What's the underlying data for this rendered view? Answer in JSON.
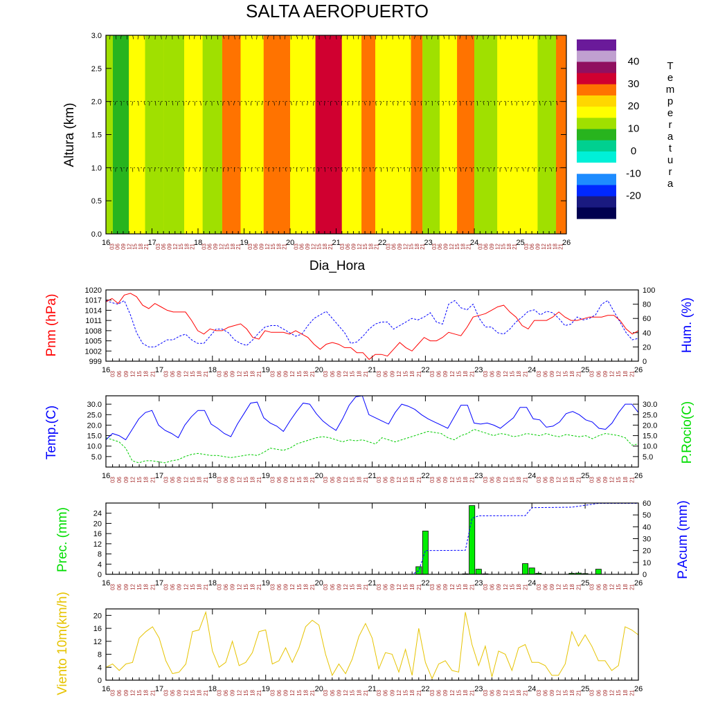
{
  "page": {
    "title": "SALTA AEROPUERTO",
    "xlabel": "Dia_Hora"
  },
  "days": [
    "16",
    "17",
    "18",
    "19",
    "20",
    "21",
    "22",
    "23",
    "24",
    "25",
    "26"
  ],
  "hours": [
    "03",
    "06",
    "09",
    "12",
    "15",
    "18",
    "21"
  ],
  "chart_data": [
    {
      "type": "heatmap",
      "name": "temperature-cross-section",
      "ylabel": "Altura (km)",
      "ylim": [
        0,
        3
      ],
      "yticks": [
        "0.0",
        "0.5",
        "1.0",
        "1.5",
        "2.0",
        "2.5",
        "3.0"
      ],
      "wind_levels_km": [
        1.0,
        2.0,
        3.0
      ],
      "colorbar": {
        "title": "Temperatura",
        "labels": [
          "40",
          "30",
          "20",
          "10",
          "0",
          "-10",
          "-20"
        ],
        "colors": [
          "#000050",
          "#1a1a80",
          "#0028ff",
          "#1e8cff",
          "#ffffff",
          "#00f0d8",
          "#00d090",
          "#28b41e",
          "#a0e000",
          "#ffff00",
          "#ffd700",
          "#ff7300",
          "#d00030",
          "#901060",
          "#c0a0d0",
          "#6a1a9a"
        ]
      },
      "columns": [
        {
          "day": 16.0,
          "value": 16
        },
        {
          "day": 16.3,
          "value": 12
        },
        {
          "day": 16.7,
          "value": 22
        },
        {
          "day": 17.0,
          "value": 18
        },
        {
          "day": 17.5,
          "value": 18
        },
        {
          "day": 17.9,
          "value": 22
        },
        {
          "day": 18.3,
          "value": 18
        },
        {
          "day": 18.75,
          "value": 27
        },
        {
          "day": 19.1,
          "value": 22
        },
        {
          "day": 19.75,
          "value": 27
        },
        {
          "day": 20.25,
          "value": 22
        },
        {
          "day": 20.85,
          "value": 32
        },
        {
          "day": 21.4,
          "value": 22
        },
        {
          "day": 21.7,
          "value": 27
        },
        {
          "day": 22.0,
          "value": 22
        },
        {
          "day": 22.5,
          "value": 22
        },
        {
          "day": 22.75,
          "value": 27
        },
        {
          "day": 23.0,
          "value": 18
        },
        {
          "day": 23.5,
          "value": 20
        },
        {
          "day": 23.75,
          "value": 27
        },
        {
          "day": 24.25,
          "value": 18
        },
        {
          "day": 24.75,
          "value": 22
        },
        {
          "day": 25.2,
          "value": 22
        },
        {
          "day": 25.55,
          "value": 18
        },
        {
          "day": 26.0,
          "value": 27
        }
      ]
    },
    {
      "type": "line",
      "name": "pressure-humidity",
      "ylabel_left": "Pnm (hPa)",
      "ylabel_right": "Hum. (%)",
      "yticks_left": [
        "999",
        "1002",
        "1005",
        "1008",
        "1011",
        "1014",
        "1017",
        "1020"
      ],
      "yticks_right": [
        "0",
        "20",
        "40",
        "60",
        "80",
        "100"
      ],
      "ylim_left": [
        999,
        1020
      ],
      "ylim_right": [
        0,
        100
      ],
      "series": [
        {
          "name": "Pnm (hPa)",
          "axis": "left",
          "color": "#ff0000",
          "dash": "",
          "values": [
            1016.5,
            1017.5,
            1016,
            1018.5,
            1019,
            1018,
            1015.5,
            1014.5,
            1016,
            1015,
            1014,
            1013.5,
            1013.5,
            1013.5,
            1011,
            1008,
            1007,
            1008.5,
            1008,
            1008,
            1009,
            1009.5,
            1010,
            1008.5,
            1006,
            1005.5,
            1008,
            1007.5,
            1007.5,
            1007.5,
            1007,
            1008,
            1007,
            1006,
            1004,
            1002.5,
            1004,
            1004.5,
            1004,
            1003,
            1003,
            1001.5,
            1001.5,
            999.5,
            1001,
            1001,
            1000.5,
            1002.5,
            1004.5,
            1003,
            1002,
            1004,
            1006,
            1005,
            1005,
            1006,
            1007.5,
            1007,
            1006.5,
            1009,
            1012,
            1012.5,
            1013,
            1014,
            1015,
            1015.5,
            1013.5,
            1012,
            1009.5,
            1008.5,
            1011,
            1011,
            1011,
            1012,
            1013.5,
            1012,
            1011,
            1011,
            1011.5,
            1012,
            1012,
            1012,
            1012.5,
            1012.5,
            1011,
            1008.5,
            1007,
            1008
          ]
        },
        {
          "name": "Hum. (%)",
          "axis": "right",
          "color": "#0000ff",
          "dash": "3,2",
          "values": [
            85,
            82,
            80,
            85,
            65,
            40,
            25,
            20,
            20,
            25,
            30,
            30,
            35,
            38,
            30,
            25,
            25,
            35,
            45,
            45,
            40,
            30,
            25,
            22,
            30,
            40,
            48,
            50,
            50,
            45,
            40,
            35,
            38,
            50,
            60,
            65,
            70,
            60,
            50,
            40,
            25,
            27,
            35,
            45,
            52,
            55,
            55,
            45,
            50,
            55,
            60,
            58,
            62,
            68,
            55,
            52,
            80,
            85,
            75,
            72,
            80,
            60,
            48,
            48,
            40,
            38,
            45,
            55,
            62,
            70,
            72,
            65,
            70,
            68,
            60,
            50,
            52,
            62,
            58,
            60,
            65,
            80,
            85,
            70,
            55,
            40,
            30,
            32
          ]
        }
      ]
    },
    {
      "type": "line",
      "name": "temperature-dewpoint",
      "ylabel_left": "Temp.(C)",
      "ylabel_right": "P.Rocio(C)",
      "yticks_left": [
        "5.0",
        "10.0",
        "15.0",
        "20.0",
        "25.0",
        "30.0"
      ],
      "yticks_right": [
        "5.0",
        "10.0",
        "15.0",
        "20.0",
        "25.0",
        "30.0"
      ],
      "ylim": [
        0,
        34
      ],
      "series": [
        {
          "name": "Temp.(C)",
          "axis": "left",
          "color": "#0000ff",
          "dash": "",
          "values": [
            13,
            16,
            15,
            13,
            18,
            23,
            26,
            27,
            20,
            17.5,
            16,
            14,
            20,
            24,
            27,
            27,
            20.5,
            18.5,
            16,
            14.5,
            20.5,
            25.5,
            30.5,
            31,
            23.5,
            21,
            19.5,
            17,
            22,
            26.5,
            30.5,
            30,
            25.5,
            22,
            19.5,
            17.5,
            23,
            29.5,
            33.5,
            34,
            25,
            23.5,
            22,
            20.5,
            26,
            30,
            29,
            27.5,
            25,
            23,
            21.5,
            20,
            18.5,
            24,
            29.5,
            29.5,
            21,
            20.5,
            21,
            20,
            18.5,
            21,
            23.5,
            28.5,
            28.5,
            23,
            22.5,
            19,
            19.5,
            21.5,
            25.5,
            26.5,
            25,
            22.5,
            21.5,
            18.5,
            18,
            21,
            26,
            30,
            30,
            26
          ]
        },
        {
          "name": "P.Rocio(C)",
          "axis": "right",
          "color": "#00cc00",
          "dash": "3,2",
          "values": [
            14,
            13,
            12,
            9,
            3,
            2,
            3,
            3,
            2.5,
            2,
            3,
            3.5,
            5,
            6,
            6.5,
            6,
            5.5,
            5.5,
            5,
            4.5,
            5,
            5.5,
            6,
            5.5,
            7,
            9,
            8.5,
            8,
            9,
            11,
            12,
            13,
            14,
            14.5,
            14,
            13,
            12,
            13,
            12.5,
            13,
            12,
            11,
            14,
            13,
            12,
            13,
            14,
            15,
            16,
            17,
            16.5,
            16,
            14,
            13,
            15,
            16,
            18,
            17,
            16,
            15,
            16,
            15.5,
            14.5,
            15,
            16,
            15.5,
            15,
            16,
            15,
            14.5,
            15.5,
            15,
            14.5,
            15,
            13.5,
            15,
            16,
            15.5,
            15,
            14,
            10.5,
            11
          ]
        }
      ]
    },
    {
      "type": "bar",
      "name": "precipitation",
      "ylabel_left": "Prec. (mm)",
      "ylabel_right": "P.Acum (mm)",
      "yticks_left": [
        "0",
        "4",
        "8",
        "12",
        "16",
        "20",
        "24"
      ],
      "yticks_right": [
        "0",
        "10",
        "20",
        "30",
        "40",
        "50",
        "60"
      ],
      "ylim_left": [
        0,
        28
      ],
      "ylim_right": [
        0,
        60
      ],
      "bars": [
        {
          "day": 21.875,
          "value": 3.0
        },
        {
          "day": 22.0,
          "value": 17.0
        },
        {
          "day": 22.75,
          "value": 0.2
        },
        {
          "day": 22.875,
          "value": 27.0
        },
        {
          "day": 23.0,
          "value": 2.0
        },
        {
          "day": 23.125,
          "value": 0.2
        },
        {
          "day": 23.875,
          "value": 4.2
        },
        {
          "day": 24.0,
          "value": 2.5
        },
        {
          "day": 24.125,
          "value": 0.4
        },
        {
          "day": 24.75,
          "value": 0.4
        },
        {
          "day": 24.875,
          "value": 0.5
        },
        {
          "day": 25.0,
          "value": 0.3
        },
        {
          "day": 25.25,
          "value": 2.0
        }
      ],
      "accum": {
        "name": "P.Acum (mm)",
        "color": "#0000ff",
        "dash": "3,2",
        "points": [
          [
            16,
            0
          ],
          [
            21.75,
            0
          ],
          [
            21.875,
            3
          ],
          [
            22,
            20
          ],
          [
            22.75,
            20.2
          ],
          [
            22.875,
            47.2
          ],
          [
            23,
            49.2
          ],
          [
            23.875,
            49.4
          ],
          [
            24,
            56.1
          ],
          [
            24.75,
            56.5
          ],
          [
            25.25,
            59.7
          ],
          [
            26,
            59.7
          ]
        ]
      }
    },
    {
      "type": "line",
      "name": "wind-10m",
      "ylabel": "Viento 10m(km/h)",
      "yticks": [
        "0",
        "4",
        "8",
        "12",
        "16",
        "20"
      ],
      "ylim": [
        0,
        22
      ],
      "series": [
        {
          "name": "Viento 10m(km/h)",
          "color": "#e6c300",
          "values": [
            4,
            5,
            3,
            5,
            5.5,
            13,
            15,
            16.5,
            13,
            6,
            2,
            2.5,
            5,
            15,
            15.5,
            21,
            9,
            4,
            5.5,
            12,
            4.5,
            5.5,
            8.5,
            15,
            15.5,
            5,
            6,
            10,
            5.5,
            10,
            16.5,
            18.5,
            17,
            8,
            1.5,
            5,
            2,
            6.5,
            13.5,
            17.5,
            13,
            3.5,
            8.5,
            8,
            2.5,
            9.5,
            1.5,
            16,
            5.5,
            0.5,
            5,
            6,
            3,
            2.5,
            21,
            11,
            4.5,
            10.5,
            1,
            9,
            8,
            3,
            10,
            11,
            5.5,
            5.5,
            4.5,
            1.5,
            1.5,
            5,
            15,
            10.5,
            14,
            10.5,
            6,
            6,
            3,
            4.5,
            16.5,
            15.5,
            14
          ]
        }
      ]
    }
  ]
}
